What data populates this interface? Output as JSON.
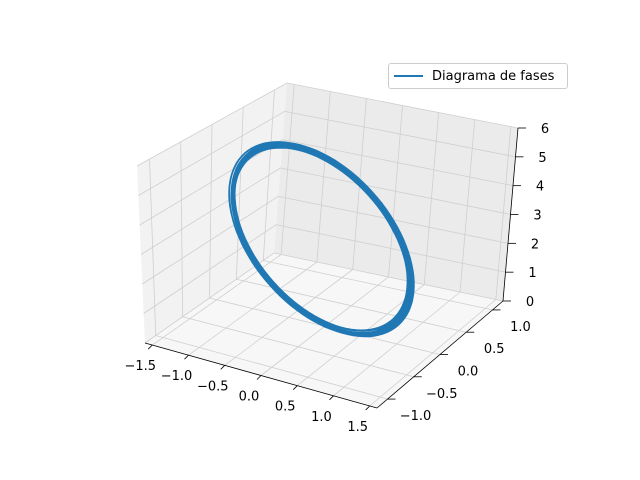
{
  "chart_data": {
    "type": "line",
    "projection": "3d",
    "title": "",
    "xlabel": "",
    "ylabel": "",
    "zlabel": "",
    "xlim": [
      -1.6,
      1.6
    ],
    "ylim": [
      -1.2,
      1.2
    ],
    "zlim": [
      0,
      6
    ],
    "x_ticks": [
      "−1.5",
      "−1.0",
      "−0.5",
      "0.0",
      "0.5",
      "1.0",
      "1.5"
    ],
    "y_ticks": [
      "−1.0",
      "−0.5",
      "0.0",
      "0.5",
      "1.0"
    ],
    "z_ticks": [
      "0",
      "1",
      "2",
      "3",
      "4",
      "5",
      "6"
    ],
    "grid": true,
    "legend_position": "top-right",
    "series": [
      {
        "name": "Diagrama de fases",
        "color": "#1f77b4",
        "description_values": {
          "x_amplitude": 1.45,
          "y_amplitude": 1.0,
          "z_center": 3.1,
          "z_amplitude": 2.9,
          "laps": 14
        }
      }
    ]
  }
}
